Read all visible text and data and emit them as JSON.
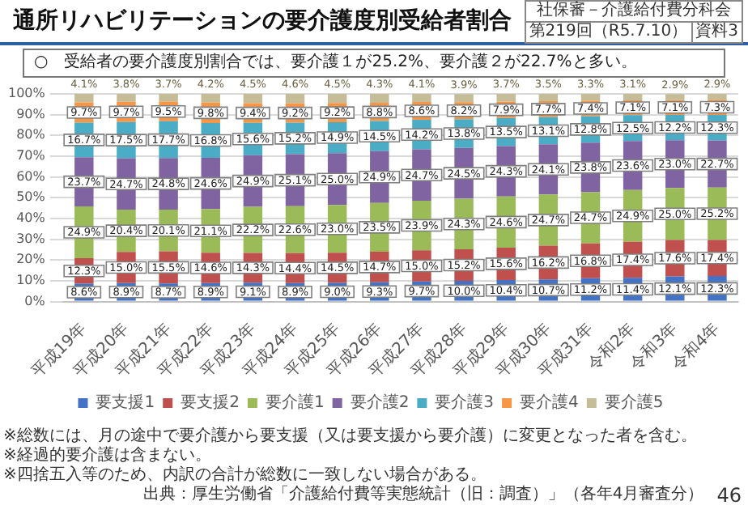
{
  "chart_data": {
    "type": "bar",
    "title": "通所リハビリテーションの要介護度別受給者割合",
    "subtitle": "○　受給者の要介護度別割合では、要介護１が25.2%、要介護２が22.7%と多い。",
    "categories": [
      "平成19年",
      "平成20年",
      "平成21年",
      "平成22年",
      "平成23年",
      "平成24年",
      "平成25年",
      "平成26年",
      "平成27年",
      "平成28年",
      "平成29年",
      "平成30年",
      "平成31年",
      "令和2年",
      "令和3年",
      "令和4年"
    ],
    "stacked": true,
    "series": [
      {
        "name": "要支援1",
        "color": "#4472c4",
        "values": [
          8.6,
          8.9,
          8.7,
          8.9,
          9.1,
          8.9,
          9.0,
          9.3,
          9.7,
          10.0,
          10.4,
          10.7,
          11.2,
          11.4,
          12.1,
          12.3
        ],
        "value_labels": [
          "8.6%",
          "8.9%",
          "8.7%",
          "8.9%",
          "9.1%",
          "8.9%",
          "9.0%",
          "9.3%",
          "9.7%",
          "10.0%",
          "10.4%",
          "10.7%",
          "11.2%",
          "11.4%",
          "12.1%",
          "12.3%"
        ]
      },
      {
        "name": "要支援2",
        "color": "#c0504d",
        "values": [
          12.3,
          15.0,
          15.5,
          14.6,
          14.3,
          14.4,
          14.5,
          14.7,
          15.0,
          15.2,
          15.6,
          16.2,
          16.8,
          17.4,
          17.6,
          17.4
        ],
        "value_labels": [
          "12.3%",
          "15.0%",
          "15.5%",
          "14.6%",
          "14.3%",
          "14.4%",
          "14.5%",
          "14.7%",
          "15.0%",
          "15.2%",
          "15.6%",
          "16.2%",
          "16.8%",
          "17.4%",
          "17.6%",
          "17.4%"
        ]
      },
      {
        "name": "要介護1",
        "color": "#9bbb59",
        "values": [
          24.9,
          20.4,
          20.1,
          21.1,
          22.2,
          22.6,
          23.0,
          23.5,
          23.9,
          24.3,
          24.6,
          24.7,
          24.7,
          24.9,
          25.0,
          25.2
        ],
        "value_labels": [
          "24.9%",
          "20.4%",
          "20.1%",
          "21.1%",
          "22.2%",
          "22.6%",
          "23.0%",
          "23.5%",
          "23.9%",
          "24.3%",
          "24.6%",
          "24.7%",
          "24.7%",
          "24.9%",
          "25.0%",
          "25.2%"
        ]
      },
      {
        "name": "要介護2",
        "color": "#8064a2",
        "values": [
          23.7,
          24.7,
          24.8,
          24.6,
          24.9,
          25.1,
          25.0,
          24.9,
          24.7,
          24.5,
          24.3,
          24.1,
          23.8,
          23.6,
          23.0,
          22.7
        ],
        "value_labels": [
          "23.7%",
          "24.7%",
          "24.8%",
          "24.6%",
          "24.9%",
          "25.1%",
          "25.0%",
          "24.9%",
          "24.7%",
          "24.5%",
          "24.3%",
          "24.1%",
          "23.8%",
          "23.6%",
          "23.0%",
          "22.7%"
        ]
      },
      {
        "name": "要介護3",
        "color": "#4bacc6",
        "values": [
          16.7,
          17.5,
          17.7,
          16.8,
          15.6,
          15.2,
          14.9,
          14.5,
          14.2,
          13.8,
          13.5,
          13.1,
          12.8,
          12.5,
          12.2,
          12.3
        ],
        "value_labels": [
          "16.7%",
          "17.5%",
          "17.7%",
          "16.8%",
          "15.6%",
          "15.2%",
          "14.9%",
          "14.5%",
          "14.2%",
          "13.8%",
          "13.5%",
          "13.1%",
          "12.8%",
          "12.5%",
          "12.2%",
          "12.3%"
        ]
      },
      {
        "name": "要介護4",
        "color": "#f79646",
        "values": [
          9.7,
          9.7,
          9.5,
          9.8,
          9.4,
          9.2,
          9.2,
          8.8,
          8.6,
          8.2,
          7.9,
          7.7,
          7.4,
          7.1,
          7.1,
          7.3
        ],
        "value_labels": [
          "9.7%",
          "9.7%",
          "9.5%",
          "9.8%",
          "9.4%",
          "9.2%",
          "9.2%",
          "8.8%",
          "8.6%",
          "8.2%",
          "7.9%",
          "7.7%",
          "7.4%",
          "7.1%",
          "7.1%",
          "7.3%"
        ]
      },
      {
        "name": "要介護5",
        "color": "#c4bd97",
        "values": [
          4.1,
          3.8,
          3.7,
          4.2,
          4.5,
          4.6,
          4.5,
          4.3,
          4.1,
          3.9,
          3.7,
          3.5,
          3.3,
          3.1,
          2.9,
          2.9
        ],
        "value_labels": [
          "4.1%",
          "3.8%",
          "3.7%",
          "4.2%",
          "4.5%",
          "4.6%",
          "4.5%",
          "4.3%",
          "4.1%",
          "3.9%",
          "3.7%",
          "3.5%",
          "3.3%",
          "3.1%",
          "2.9%",
          "2.9%"
        ]
      }
    ],
    "ylim": [
      0,
      100
    ],
    "yticks": [
      {
        "value": 0,
        "label": "0%"
      },
      {
        "value": 10,
        "label": "10%"
      },
      {
        "value": 20,
        "label": "20%"
      },
      {
        "value": 30,
        "label": "30%"
      },
      {
        "value": 40,
        "label": "40%"
      },
      {
        "value": 50,
        "label": "50%"
      },
      {
        "value": 60,
        "label": "60%"
      },
      {
        "value": 70,
        "label": "70%"
      },
      {
        "value": 80,
        "label": "80%"
      },
      {
        "value": 90,
        "label": "90%"
      },
      {
        "value": 100,
        "label": "100%"
      }
    ],
    "grid": "y",
    "legend": "bottom",
    "annotations": [
      "社保審－介護給付費分科会",
      "第219回（R5.7.10）",
      "資料3",
      "※総数には、月の途中で要介護から要支援（又は要支援から要介護）に変更となった者を含む。",
      "※経過的要介護は含まない。",
      "※四捨五入等のため、内訳の合計が総数に一致しない場合がある。",
      "出典：厚生労働省「介護給付費等実態統計（旧：調査）」（各年4月審査分）",
      "46"
    ]
  }
}
